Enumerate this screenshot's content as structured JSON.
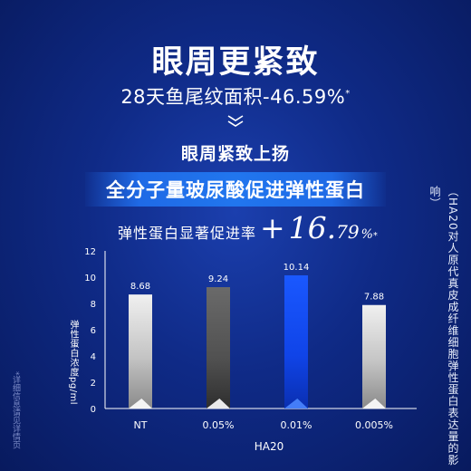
{
  "header": {
    "title": "眼周更紧致",
    "subtitle": "28天鱼尾纹面积-46.59%",
    "subtitle_mark": "*"
  },
  "section": {
    "title": "眼周紧致上扬",
    "banner": "全分子量玻尿酸促进弹性蛋白"
  },
  "promo": {
    "label": "弹性蛋白显著促进率",
    "sign": "+",
    "value_int": "16.",
    "value_dec": "79",
    "unit": "%",
    "mark": "*"
  },
  "side_note": "（HA20对人原代真皮成纤维细胞弹性蛋白表达量的影响）",
  "footnote": "*详细信息请见详情页",
  "chart_data": {
    "type": "bar",
    "categories": [
      "NT",
      "0.05%",
      "0.01%",
      "0.005%"
    ],
    "values": [
      8.68,
      9.24,
      10.14,
      7.88
    ],
    "value_labels": [
      "8.68",
      "9.24",
      "10.14",
      "7.88"
    ],
    "ylabel": "弹性蛋白浓度pg/ml",
    "xlabel": "HA20",
    "ylim": [
      0,
      12
    ],
    "yticks": [
      0,
      2,
      4,
      6,
      8,
      10,
      12
    ],
    "grid": false,
    "bar_styles": [
      "silver",
      "dark-gray",
      "blue",
      "silver"
    ]
  },
  "colors": {
    "background": "#0f2a86",
    "banner": "#1f6ae6",
    "highlight_bar": "#1450ff",
    "silver_bar": "#c8c8c8",
    "dark_bar": "#565656"
  }
}
